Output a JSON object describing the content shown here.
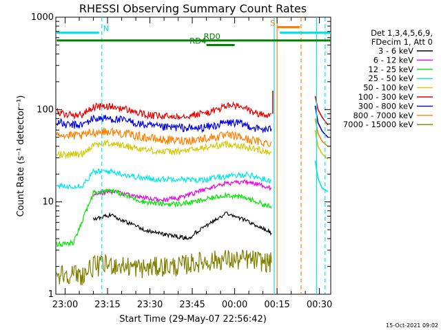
{
  "chart_data": {
    "type": "line",
    "title": "RHESSI Observing Summary Count Rates",
    "xlabel": "Start Time (29-May-07 22:56:42)",
    "ylabel": "Count Rate (s⁻¹ detector⁻¹)",
    "yscale": "log",
    "ylim": [
      1,
      1000
    ],
    "xlim": [
      "22:56:42",
      "00:34:00"
    ],
    "x_ticks": [
      "23:00",
      "23:15",
      "23:30",
      "23:45",
      "00:00",
      "00:15",
      "00:30"
    ],
    "y_ticks": [
      "1",
      "10",
      "100",
      "1000"
    ],
    "grid": false,
    "legend_position": "right",
    "legend_header": [
      "Det 1,3,4,5,6,9,",
      "FDecim 1, Att 0"
    ],
    "timestamp": "15-Oct-2021 09:02",
    "series": [
      {
        "name": "3 - 6 keV",
        "color": "#000000",
        "points": [
          [
            "23:03",
            null
          ],
          [
            "23:10",
            6.5
          ],
          [
            "23:16",
            7.2
          ],
          [
            "23:22",
            6.0
          ],
          [
            "23:28",
            5.0
          ],
          [
            "23:34",
            4.5
          ],
          [
            "23:40",
            4.2
          ],
          [
            "23:44",
            4.0
          ],
          [
            "23:46",
            4.6
          ],
          [
            "23:52",
            6.0
          ],
          [
            "23:57",
            7.5
          ],
          [
            "00:00",
            7.0
          ],
          [
            "00:03",
            6.5
          ],
          [
            "00:08",
            5.5
          ],
          [
            "00:12",
            4.8
          ],
          [
            "00:13",
            4.6
          ]
        ]
      },
      {
        "name": "6 - 12 keV",
        "color": "#e600e6",
        "points": [
          [
            "23:03",
            null
          ],
          [
            "23:10",
            12.0
          ],
          [
            "23:16",
            13.0
          ],
          [
            "23:22",
            12.0
          ],
          [
            "23:28",
            11.0
          ],
          [
            "23:34",
            10.5
          ],
          [
            "23:40",
            11.0
          ],
          [
            "23:46",
            12.5
          ],
          [
            "23:52",
            14.5
          ],
          [
            "23:57",
            16.0
          ],
          [
            "00:00",
            16.0
          ],
          [
            "00:04",
            16.5
          ],
          [
            "00:08",
            15.5
          ],
          [
            "00:12",
            14.5
          ],
          [
            "00:13",
            14.0
          ]
        ]
      },
      {
        "name": "12 - 25 keV",
        "color": "#00e600",
        "points": [
          [
            "22:57",
            3.5
          ],
          [
            "23:00",
            3.5
          ],
          [
            "23:03",
            3.6
          ],
          [
            "23:10",
            12.5
          ],
          [
            "23:16",
            13.5
          ],
          [
            "23:22",
            11.5
          ],
          [
            "23:28",
            10.0
          ],
          [
            "23:34",
            9.5
          ],
          [
            "23:40",
            9.5
          ],
          [
            "23:46",
            10.0
          ],
          [
            "23:52",
            11.0
          ],
          [
            "23:57",
            12.0
          ],
          [
            "00:00",
            11.5
          ],
          [
            "00:04",
            11.0
          ],
          [
            "00:08",
            10.0
          ],
          [
            "00:12",
            9.0
          ],
          [
            "00:13",
            8.5
          ]
        ]
      },
      {
        "name": "25 - 50 keV",
        "color": "#00e6e6",
        "points": [
          [
            "22:57",
            15.0
          ],
          [
            "23:00",
            14.5
          ],
          [
            "23:03",
            15.0
          ],
          [
            "23:06",
            15.0
          ],
          [
            "23:10",
            21.0
          ],
          [
            "23:16",
            21.5
          ],
          [
            "23:22",
            19.5
          ],
          [
            "23:28",
            18.0
          ],
          [
            "23:34",
            17.5
          ],
          [
            "23:40",
            18.0
          ],
          [
            "23:46",
            17.0
          ],
          [
            "23:52",
            18.0
          ],
          [
            "23:57",
            19.0
          ],
          [
            "00:00",
            19.0
          ],
          [
            "00:04",
            20.0
          ],
          [
            "00:08",
            18.5
          ],
          [
            "00:12",
            17.0
          ],
          [
            "00:13",
            17.0
          ]
        ]
      },
      {
        "name": "50 - 100 keV",
        "color": "#d4c800",
        "points": [
          [
            "22:57",
            34.0
          ],
          [
            "23:00",
            32.0
          ],
          [
            "23:03",
            33.0
          ],
          [
            "23:06",
            33.0
          ],
          [
            "23:10",
            42.0
          ],
          [
            "23:16",
            43.0
          ],
          [
            "23:22",
            40.0
          ],
          [
            "23:28",
            37.0
          ],
          [
            "23:34",
            35.0
          ],
          [
            "23:40",
            35.0
          ],
          [
            "23:46",
            37.0
          ],
          [
            "23:52",
            40.0
          ],
          [
            "23:57",
            42.0
          ],
          [
            "00:00",
            42.0
          ],
          [
            "00:04",
            39.0
          ],
          [
            "00:08",
            37.0
          ],
          [
            "00:12",
            35.0
          ],
          [
            "00:13",
            35.0
          ]
        ]
      },
      {
        "name": "100 - 300 keV",
        "color": "#e60000",
        "points": [
          [
            "22:57",
            95.0
          ],
          [
            "23:00",
            88.0
          ],
          [
            "23:03",
            88.0
          ],
          [
            "23:06",
            88.0
          ],
          [
            "23:10",
            107.0
          ],
          [
            "23:16",
            108.0
          ],
          [
            "23:22",
            100.0
          ],
          [
            "23:28",
            88.0
          ],
          [
            "23:34",
            84.0
          ],
          [
            "23:40",
            85.0
          ],
          [
            "23:46",
            88.0
          ],
          [
            "23:52",
            95.0
          ],
          [
            "23:57",
            110.0
          ],
          [
            "00:00",
            110.0
          ],
          [
            "00:04",
            102.0
          ],
          [
            "00:08",
            90.0
          ],
          [
            "00:12",
            86.0
          ],
          [
            "00:13",
            90.0
          ]
        ]
      },
      {
        "name": "300 - 800 keV",
        "color": "#0000e6",
        "points": [
          [
            "22:57",
            75.0
          ],
          [
            "23:00",
            68.0
          ],
          [
            "23:03",
            68.0
          ],
          [
            "23:06",
            68.0
          ],
          [
            "23:10",
            80.0
          ],
          [
            "23:16",
            80.0
          ],
          [
            "23:22",
            75.0
          ],
          [
            "23:28",
            68.0
          ],
          [
            "23:34",
            64.0
          ],
          [
            "23:40",
            64.0
          ],
          [
            "23:46",
            62.0
          ],
          [
            "23:52",
            66.0
          ],
          [
            "23:57",
            72.0
          ],
          [
            "00:00",
            72.0
          ],
          [
            "00:04",
            68.0
          ],
          [
            "00:08",
            62.0
          ],
          [
            "00:12",
            60.0
          ],
          [
            "00:13",
            62.0
          ]
        ]
      },
      {
        "name": "800 - 7000 keV",
        "color": "#ff8000",
        "points": [
          [
            "22:57",
            58.0
          ],
          [
            "23:00",
            52.0
          ],
          [
            "23:03",
            52.0
          ],
          [
            "23:06",
            52.0
          ],
          [
            "23:10",
            57.0
          ],
          [
            "23:16",
            58.0
          ],
          [
            "23:22",
            54.0
          ],
          [
            "23:28",
            50.0
          ],
          [
            "23:34",
            47.0
          ],
          [
            "23:40",
            46.0
          ],
          [
            "23:46",
            47.0
          ],
          [
            "23:52",
            50.0
          ],
          [
            "23:57",
            52.0
          ],
          [
            "00:00",
            52.0
          ],
          [
            "00:04",
            48.0
          ],
          [
            "00:08",
            45.0
          ],
          [
            "00:12",
            43.0
          ],
          [
            "00:13",
            45.0
          ]
        ]
      },
      {
        "name": "7000 - 15000 keV",
        "color": "#808000",
        "points": [
          [
            "22:57",
            1.6
          ],
          [
            "23:00",
            1.7
          ],
          [
            "23:06",
            1.6
          ],
          [
            "23:10",
            2.0
          ],
          [
            "23:16",
            2.1
          ],
          [
            "23:22",
            2.0
          ],
          [
            "23:28",
            1.9
          ],
          [
            "23:34",
            2.0
          ],
          [
            "23:40",
            2.0
          ],
          [
            "23:46",
            2.2
          ],
          [
            "23:52",
            2.3
          ],
          [
            "23:57",
            2.4
          ],
          [
            "00:00",
            2.3
          ],
          [
            "00:04",
            2.4
          ],
          [
            "00:08",
            2.3
          ],
          [
            "00:12",
            2.2
          ],
          [
            "00:13",
            2.2
          ]
        ]
      }
    ],
    "tail": {
      "times": [
        "00:28:30",
        "00:29:30",
        "00:31:00",
        "00:33:00"
      ],
      "values": {
        "100 - 300 keV": [
          140,
          100,
          82,
          68
        ],
        "300 - 800 keV": [
          110,
          72,
          58,
          50
        ],
        "800 - 7000 keV": [
          80,
          55,
          45,
          40
        ],
        "50 - 100 keV": [
          60,
          40,
          33,
          29
        ],
        "25 - 50 keV": [
          28,
          18,
          14,
          13
        ]
      }
    },
    "flare_spike": {
      "time": "00:13:30",
      "value": 160
    },
    "vertical_lines": [
      {
        "time": "23:13",
        "color": "#00e6e6",
        "style": "dashed"
      },
      {
        "time": "00:14",
        "color": "#00e6e6",
        "style": "solid"
      },
      {
        "time": "00:15",
        "color": "#ff8000",
        "style": "solid"
      },
      {
        "time": "00:23:30",
        "color": "#ff8000",
        "style": "dashed"
      },
      {
        "time": "00:29",
        "color": "#00e6e6",
        "style": "solid"
      },
      {
        "time": "00:32",
        "color": "#00e6e6",
        "style": "dashed"
      }
    ],
    "annotations": [
      {
        "label": "N",
        "color": "#00e6e6",
        "start": "22:57",
        "end": "23:12",
        "y": 680,
        "label_time": "23:14:30"
      },
      {
        "label": "",
        "color": "#00e6e6",
        "start": "00:16",
        "end": "00:34",
        "y": 680
      },
      {
        "label": "S",
        "color": "#ff8000",
        "start": "00:15",
        "end": "00:23",
        "y": 780,
        "label_time": "00:13:30"
      },
      {
        "label": "RD0",
        "color": "#008000",
        "start": "22:57",
        "end": "00:34",
        "y": 560,
        "label_time": "23:52"
      },
      {
        "label": "RD4",
        "color": "#008000",
        "start": "23:50",
        "end": "00:00",
        "y": 500,
        "label_time": "23:47"
      }
    ]
  }
}
